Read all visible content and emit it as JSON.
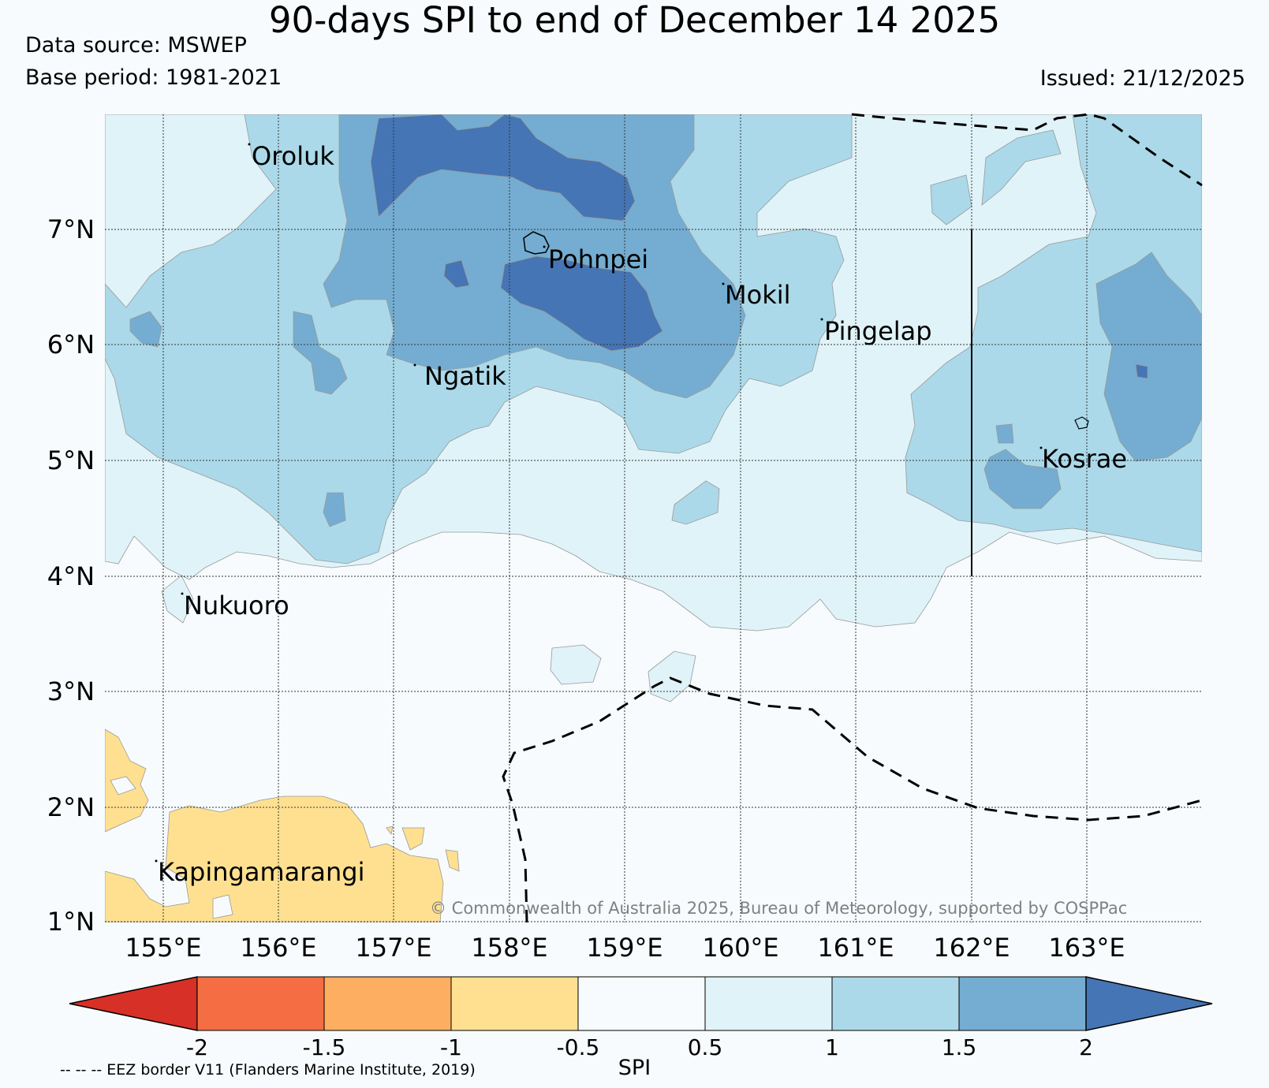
{
  "title": "90-days SPI to end of December 14 2025",
  "data_source": "Data source: MSWEP",
  "base_period": "Base period: 1981-2021",
  "issued": "Issued: 21/12/2025",
  "map": {
    "lat_labels": [
      "7°N",
      "6°N",
      "5°N",
      "4°N",
      "3°N",
      "2°N",
      "1°N"
    ],
    "lon_labels": [
      "155°E",
      "156°E",
      "157°E",
      "158°E",
      "159°E",
      "160°E",
      "161°E",
      "162°E",
      "163°E"
    ],
    "places": [
      "Oroluk",
      "Pohnpei",
      "Mokil",
      "Pingelap",
      "Ngatik",
      "Kosrae",
      "Nukuoro",
      "Kapingamarangi"
    ],
    "copyright": "© Commonwealth of Australia 2025, Bureau of Meteorology, supported by COSPPac"
  },
  "colorbar": {
    "label": "SPI",
    "ticks": [
      "-2",
      "-1.5",
      "-1",
      "-0.5",
      "0.5",
      "1",
      "1.5",
      "2"
    ],
    "colors": {
      "below_-2": "#d73027",
      "-2_-1.5": "#f46d43",
      "-1.5_-1": "#fdae61",
      "-1_-0.5": "#fee090",
      "-0.5_0.5": "#f7fbfd",
      "0.5_1": "#e0f3f8",
      "1_1.5": "#abd9e9",
      "1.5_2": "#74add1",
      "above_2": "#4575b4"
    }
  },
  "legend_note": "-- -- -- EEZ border V11 (Flanders Marine Institute, 2019)"
}
